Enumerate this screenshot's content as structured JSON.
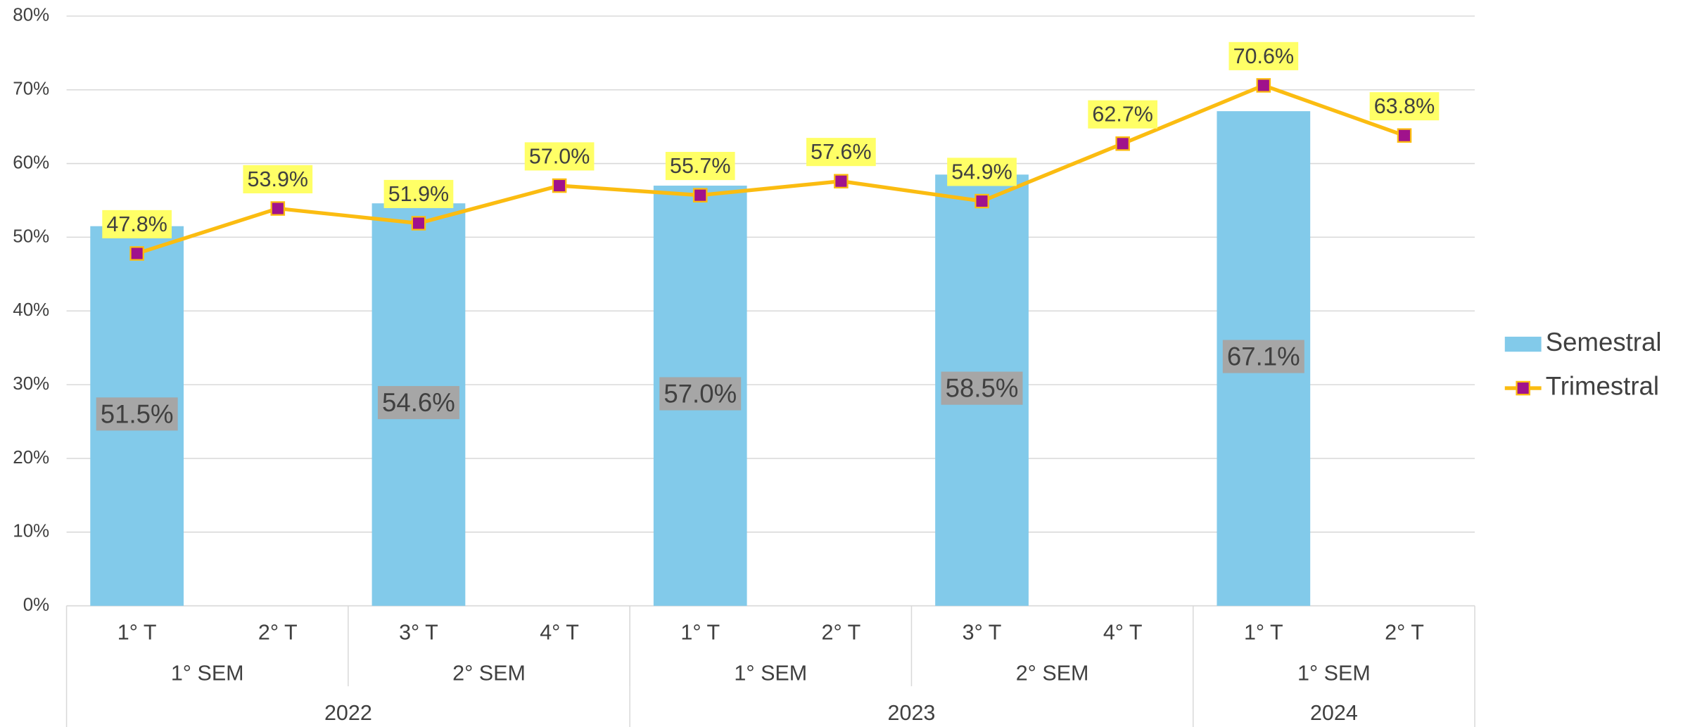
{
  "chart_data": {
    "type": "combo",
    "categories": [
      "1° T",
      "2° T",
      "3° T",
      "4° T",
      "1° T",
      "2° T",
      "3° T",
      "4° T",
      "1° T",
      "2° T"
    ],
    "semesters": [
      "1° SEM",
      "2° SEM",
      "1° SEM",
      "2° SEM",
      "1° SEM"
    ],
    "years": [
      "2022",
      "2023",
      "2024"
    ],
    "ylim": [
      0,
      80
    ],
    "yticks": [
      {
        "value": 0,
        "label": "0%"
      },
      {
        "value": 10,
        "label": "10%"
      },
      {
        "value": 20,
        "label": "20%"
      },
      {
        "value": 30,
        "label": "30%"
      },
      {
        "value": 40,
        "label": "40%"
      },
      {
        "value": 50,
        "label": "50%"
      },
      {
        "value": 60,
        "label": "60%"
      },
      {
        "value": 70,
        "label": "70%"
      },
      {
        "value": 80,
        "label": "80%"
      }
    ],
    "grid": true,
    "legend": "right",
    "series": [
      {
        "name": "Semestral",
        "type": "bar",
        "color": "#82caea",
        "label_color": "#a6a6a6",
        "values": [
          51.5,
          null,
          54.6,
          null,
          57.0,
          null,
          58.5,
          null,
          67.1,
          null
        ],
        "value_labels": [
          "51.5%",
          null,
          "54.6%",
          null,
          "57.0%",
          null,
          "58.5%",
          null,
          "67.1%",
          null
        ]
      },
      {
        "name": "Trimestral",
        "type": "line",
        "color": "#fbbc11",
        "marker_color": "#a0128c",
        "label_color": "#ffff66",
        "values": [
          47.8,
          53.9,
          51.9,
          57.0,
          55.7,
          57.6,
          54.9,
          62.7,
          70.6,
          63.8
        ],
        "value_labels": [
          "47.8%",
          "53.9%",
          "51.9%",
          "57.0%",
          "55.7%",
          "57.6%",
          "54.9%",
          "62.7%",
          "70.6%",
          "63.8%"
        ]
      }
    ]
  }
}
